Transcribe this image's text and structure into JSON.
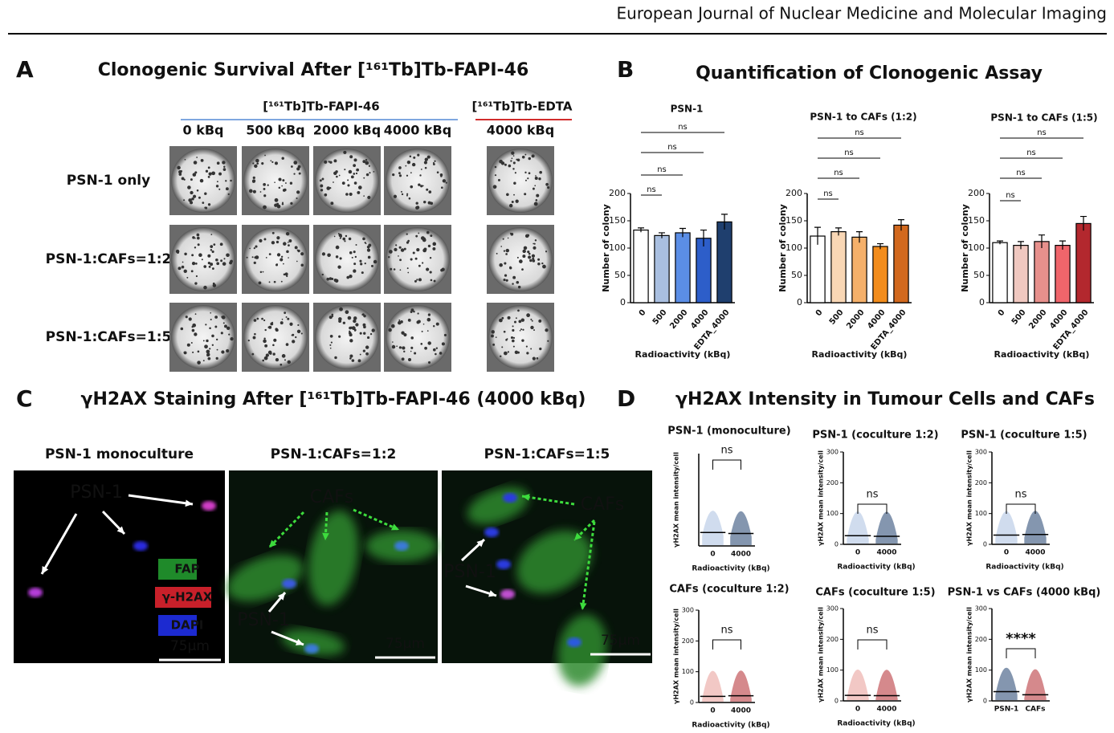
{
  "header": {
    "journal": "European Journal of Nuclear Medicine and Molecular Imaging"
  },
  "panel_a": {
    "letter": "A",
    "title": "Clonogenic Survival After [¹⁶¹Tb]Tb-FAPI-46",
    "groups": [
      "[¹⁶¹Tb]Tb-FAPI-46",
      "[¹⁶¹Tb]Tb-EDTA"
    ],
    "columns": [
      "0 kBq",
      "500 kBq",
      "2000 kBq",
      "4000 kBq",
      "4000 kBq"
    ],
    "rows": [
      "PSN-1 only",
      "PSN-1:CAFs=1:2",
      "PSN-1:CAFs=1:5"
    ]
  },
  "panel_b": {
    "letter": "B",
    "title": "Quantification of  Clonogenic Assay"
  },
  "panel_c": {
    "letter": "C",
    "title": "γH2AX Staining After [¹⁶¹Tb]Tb-FAPI-46 (4000 kBq)",
    "images": [
      {
        "title": "PSN-1 monoculture",
        "labels": [
          "PSN-1",
          "FAP",
          "γ-H2AX",
          "DAPI",
          "75μm"
        ]
      },
      {
        "title": "PSN-1:CAFs=1:2",
        "labels": [
          "CAFs",
          "PSN-1",
          "75μm"
        ]
      },
      {
        "title": "PSN-1:CAFs=1:5",
        "labels": [
          "CAFs",
          "PSN-1",
          "75μm"
        ]
      }
    ]
  },
  "panel_d": {
    "letter": "D",
    "title": "γH2AX Intensity in Tumour Cells and CAFs"
  },
  "chart_data": [
    {
      "type": "bar",
      "title": "PSN-1",
      "x_label": "Radioactivity (kBq)",
      "y_label": "Number of colony",
      "categories": [
        "0",
        "500",
        "2000",
        "4000",
        "EDTA_4000"
      ],
      "values": [
        133,
        123,
        128,
        118,
        148
      ],
      "errors": [
        4,
        5,
        8,
        15,
        14
      ],
      "colors": [
        "#ffffff",
        "#a9bfe0",
        "#5b8ee6",
        "#2d5ec9",
        "#1f3f6e"
      ],
      "ylim": [
        0,
        200
      ],
      "yticks": [
        0,
        50,
        100,
        150,
        200
      ],
      "annotations": [
        "ns",
        "ns",
        "ns",
        "ns"
      ]
    },
    {
      "type": "bar",
      "title": "PSN-1 to CAFs (1:2)",
      "x_label": "Radioactivity (kBq)",
      "y_label": "Number of colony",
      "categories": [
        "0",
        "500",
        "2000",
        "4000",
        "EDTA_4000"
      ],
      "values": [
        122,
        130,
        120,
        103,
        142
      ],
      "errors": [
        16,
        7,
        10,
        5,
        10
      ],
      "colors": [
        "#ffffff",
        "#f9d7b5",
        "#f5b06a",
        "#f28c1c",
        "#d2691e"
      ],
      "ylim": [
        0,
        200
      ],
      "yticks": [
        0,
        50,
        100,
        150,
        200
      ],
      "annotations": [
        "ns",
        "ns",
        "ns",
        "ns"
      ]
    },
    {
      "type": "bar",
      "title": "PSN-1 to CAFs (1:5)",
      "x_label": "Radioactivity (kBq)",
      "y_label": "Number of colony",
      "categories": [
        "0",
        "500",
        "2000",
        "4000",
        "EDTA_4000"
      ],
      "values": [
        110,
        105,
        112,
        105,
        145
      ],
      "errors": [
        3,
        7,
        12,
        8,
        13
      ],
      "colors": [
        "#ffffff",
        "#f0c8c0",
        "#e7908c",
        "#f0656b",
        "#b3282e"
      ],
      "ylim": [
        0,
        200
      ],
      "yticks": [
        0,
        50,
        100,
        150,
        200
      ],
      "annotations": [
        "ns",
        "ns",
        "ns",
        "ns"
      ]
    },
    {
      "type": "dot",
      "title": "PSN-1 (monoculture)",
      "x_label": "Radioactivity (kBq)",
      "y_label": "γH2AX mean intensity/cell",
      "categories": [
        "0",
        "4000"
      ],
      "values": [
        38,
        35
      ],
      "colors": [
        "#a9bfe0",
        "#1f3f6e"
      ],
      "ylim": [
        0,
        260
      ],
      "annotations": [
        "ns"
      ]
    },
    {
      "type": "dot",
      "title": "PSN-1 (coculture 1:2)",
      "x_label": "Radioactivity (kBq)",
      "y_label": "γH2AX mean intensity/cell",
      "categories": [
        "0",
        "4000"
      ],
      "values": [
        28,
        26
      ],
      "colors": [
        "#a9bfe0",
        "#1f3f6e"
      ],
      "ylim": [
        0,
        300
      ],
      "yticks": [
        0,
        100,
        200,
        300
      ],
      "annotations": [
        "ns"
      ]
    },
    {
      "type": "dot",
      "title": "PSN-1 (coculture 1:5)",
      "x_label": "Radioactivity (kBq)",
      "y_label": "γH2AX mean intensity/cell",
      "categories": [
        "0",
        "4000"
      ],
      "values": [
        30,
        32
      ],
      "colors": [
        "#a9bfe0",
        "#1f3f6e"
      ],
      "ylim": [
        0,
        300
      ],
      "yticks": [
        0,
        100,
        200,
        300
      ],
      "annotations": [
        "ns"
      ]
    },
    {
      "type": "dot",
      "title": "CAFs (coculture 1:2)",
      "x_label": "Radioactivity (kBq)",
      "y_label": "γH2AX mean intensity/cell",
      "categories": [
        "0",
        "4000"
      ],
      "values": [
        20,
        22
      ],
      "colors": [
        "#e79a96",
        "#b3282e"
      ],
      "ylim": [
        0,
        300
      ],
      "yticks": [
        0,
        100,
        200,
        300
      ],
      "annotations": [
        "ns"
      ]
    },
    {
      "type": "dot",
      "title": "CAFs (coculture 1:5)",
      "x_label": "Radioactivity (kBq)",
      "y_label": "γH2AX mean intensity/cell",
      "categories": [
        "0",
        "4000"
      ],
      "values": [
        18,
        17
      ],
      "colors": [
        "#e79a96",
        "#b3282e"
      ],
      "ylim": [
        0,
        300
      ],
      "yticks": [
        0,
        100,
        200,
        300
      ],
      "annotations": [
        "ns"
      ]
    },
    {
      "type": "dot",
      "title": "PSN-1 vs CAFs (4000 kBq)",
      "y_label": "γH2AX mean intensity/cell",
      "categories": [
        "PSN-1",
        "CAFs"
      ],
      "values": [
        30,
        20
      ],
      "colors": [
        "#1f3f6e",
        "#b3282e"
      ],
      "ylim": [
        0,
        300
      ],
      "yticks": [
        0,
        100,
        200,
        300
      ],
      "annotations": [
        "****"
      ]
    }
  ]
}
